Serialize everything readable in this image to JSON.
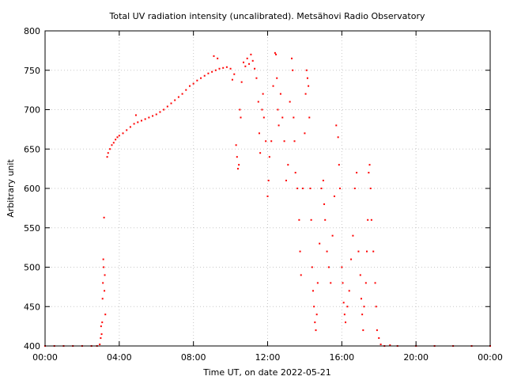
{
  "chart_data": {
    "type": "scatter",
    "title": "Total UV radiation intensity (uncalibrated). Metsähovi Radio Observatory",
    "xlabel": "Time UT, on date 2022-05-21",
    "ylabel": "Arbitrary unit",
    "xlim": [
      0,
      24
    ],
    "ylim": [
      400,
      800
    ],
    "x_ticks": [
      0,
      4,
      8,
      12,
      16,
      20,
      24
    ],
    "x_tick_labels": [
      "00:00",
      "04:00",
      "08:00",
      "12:00",
      "16:00",
      "20:00",
      "00:00"
    ],
    "y_ticks": [
      400,
      450,
      500,
      550,
      600,
      650,
      700,
      750,
      800
    ],
    "y_tick_labels": [
      "400",
      "450",
      "500",
      "550",
      "600",
      "650",
      "700",
      "750",
      "800"
    ],
    "grid": true,
    "marker_color": "#ff0000",
    "x_units": "hours UT",
    "series": [
      {
        "points": [
          [
            0.0,
            400
          ],
          [
            0.5,
            400
          ],
          [
            1.0,
            400
          ],
          [
            1.5,
            400
          ],
          [
            2.0,
            400
          ],
          [
            2.5,
            400
          ],
          [
            2.8,
            400
          ],
          [
            2.95,
            402
          ],
          [
            3.0,
            410
          ],
          [
            3.02,
            425
          ],
          [
            3.05,
            415
          ],
          [
            3.08,
            430
          ],
          [
            3.1,
            460
          ],
          [
            3.12,
            480
          ],
          [
            3.14,
            510
          ],
          [
            3.16,
            500
          ],
          [
            3.18,
            563
          ],
          [
            3.2,
            470
          ],
          [
            3.22,
            490
          ],
          [
            3.25,
            440
          ],
          [
            3.35,
            640
          ],
          [
            3.4,
            645
          ],
          [
            3.5,
            650
          ],
          [
            3.6,
            655
          ],
          [
            3.7,
            658
          ],
          [
            3.8,
            662
          ],
          [
            3.9,
            665
          ],
          [
            4.0,
            667
          ],
          [
            4.2,
            670
          ],
          [
            4.4,
            674
          ],
          [
            4.6,
            678
          ],
          [
            4.8,
            682
          ],
          [
            4.9,
            693
          ],
          [
            5.0,
            684
          ],
          [
            5.2,
            686
          ],
          [
            5.4,
            688
          ],
          [
            5.6,
            690
          ],
          [
            5.8,
            692
          ],
          [
            6.0,
            694
          ],
          [
            6.2,
            697
          ],
          [
            6.4,
            700
          ],
          [
            6.6,
            704
          ],
          [
            6.8,
            708
          ],
          [
            7.0,
            712
          ],
          [
            7.2,
            716
          ],
          [
            7.4,
            720
          ],
          [
            7.6,
            725
          ],
          [
            7.8,
            730
          ],
          [
            8.0,
            733
          ],
          [
            8.2,
            737
          ],
          [
            8.4,
            740
          ],
          [
            8.6,
            743
          ],
          [
            8.8,
            746
          ],
          [
            9.0,
            748
          ],
          [
            9.1,
            768
          ],
          [
            9.2,
            750
          ],
          [
            9.3,
            765
          ],
          [
            9.4,
            752
          ],
          [
            9.6,
            753
          ],
          [
            9.8,
            754
          ],
          [
            10.0,
            752
          ],
          [
            10.1,
            738
          ],
          [
            10.2,
            745
          ],
          [
            10.3,
            655
          ],
          [
            10.35,
            640
          ],
          [
            10.4,
            625
          ],
          [
            10.45,
            630
          ],
          [
            10.5,
            700
          ],
          [
            10.55,
            690
          ],
          [
            10.6,
            735
          ],
          [
            10.7,
            760
          ],
          [
            10.8,
            755
          ],
          [
            10.9,
            765
          ],
          [
            11.0,
            758
          ],
          [
            11.1,
            770
          ],
          [
            11.2,
            762
          ],
          [
            11.3,
            752
          ],
          [
            11.4,
            740
          ],
          [
            11.5,
            710
          ],
          [
            11.55,
            670
          ],
          [
            11.6,
            645
          ],
          [
            11.7,
            700
          ],
          [
            11.75,
            720
          ],
          [
            11.8,
            690
          ],
          [
            11.9,
            660
          ],
          [
            12.0,
            590
          ],
          [
            12.05,
            610
          ],
          [
            12.1,
            640
          ],
          [
            12.2,
            660
          ],
          [
            12.3,
            730
          ],
          [
            12.4,
            772
          ],
          [
            12.45,
            770
          ],
          [
            12.5,
            740
          ],
          [
            12.55,
            700
          ],
          [
            12.6,
            680
          ],
          [
            12.7,
            720
          ],
          [
            12.8,
            690
          ],
          [
            12.9,
            660
          ],
          [
            13.0,
            610
          ],
          [
            13.1,
            630
          ],
          [
            13.2,
            710
          ],
          [
            13.3,
            765
          ],
          [
            13.35,
            750
          ],
          [
            13.4,
            690
          ],
          [
            13.45,
            660
          ],
          [
            13.5,
            620
          ],
          [
            13.6,
            600
          ],
          [
            13.7,
            560
          ],
          [
            13.75,
            520
          ],
          [
            13.8,
            490
          ],
          [
            13.9,
            600
          ],
          [
            14.0,
            670
          ],
          [
            14.05,
            720
          ],
          [
            14.1,
            750
          ],
          [
            14.15,
            740
          ],
          [
            14.2,
            730
          ],
          [
            14.25,
            690
          ],
          [
            14.3,
            600
          ],
          [
            14.35,
            560
          ],
          [
            14.4,
            500
          ],
          [
            14.45,
            470
          ],
          [
            14.5,
            450
          ],
          [
            14.55,
            430
          ],
          [
            14.6,
            420
          ],
          [
            14.65,
            440
          ],
          [
            14.7,
            480
          ],
          [
            14.8,
            530
          ],
          [
            14.9,
            600
          ],
          [
            15.0,
            610
          ],
          [
            15.05,
            580
          ],
          [
            15.1,
            560
          ],
          [
            15.2,
            520
          ],
          [
            15.3,
            500
          ],
          [
            15.4,
            480
          ],
          [
            15.5,
            540
          ],
          [
            15.6,
            590
          ],
          [
            15.7,
            680
          ],
          [
            15.8,
            665
          ],
          [
            15.85,
            630
          ],
          [
            15.9,
            600
          ],
          [
            16.0,
            500
          ],
          [
            16.05,
            480
          ],
          [
            16.1,
            455
          ],
          [
            16.15,
            440
          ],
          [
            16.2,
            430
          ],
          [
            16.3,
            450
          ],
          [
            16.4,
            470
          ],
          [
            16.5,
            510
          ],
          [
            16.6,
            540
          ],
          [
            16.7,
            600
          ],
          [
            16.8,
            620
          ],
          [
            16.9,
            520
          ],
          [
            17.0,
            490
          ],
          [
            17.05,
            460
          ],
          [
            17.1,
            440
          ],
          [
            17.15,
            420
          ],
          [
            17.2,
            450
          ],
          [
            17.3,
            480
          ],
          [
            17.35,
            520
          ],
          [
            17.4,
            560
          ],
          [
            17.45,
            620
          ],
          [
            17.5,
            630
          ],
          [
            17.55,
            600
          ],
          [
            17.6,
            560
          ],
          [
            17.7,
            520
          ],
          [
            17.8,
            480
          ],
          [
            17.85,
            450
          ],
          [
            17.9,
            420
          ],
          [
            18.0,
            410
          ],
          [
            18.1,
            402
          ],
          [
            18.3,
            400
          ],
          [
            18.6,
            401
          ],
          [
            19.0,
            400
          ],
          [
            20.0,
            400
          ],
          [
            21.0,
            400
          ],
          [
            22.0,
            400
          ],
          [
            23.0,
            400
          ],
          [
            24.0,
            400
          ]
        ]
      }
    ]
  }
}
